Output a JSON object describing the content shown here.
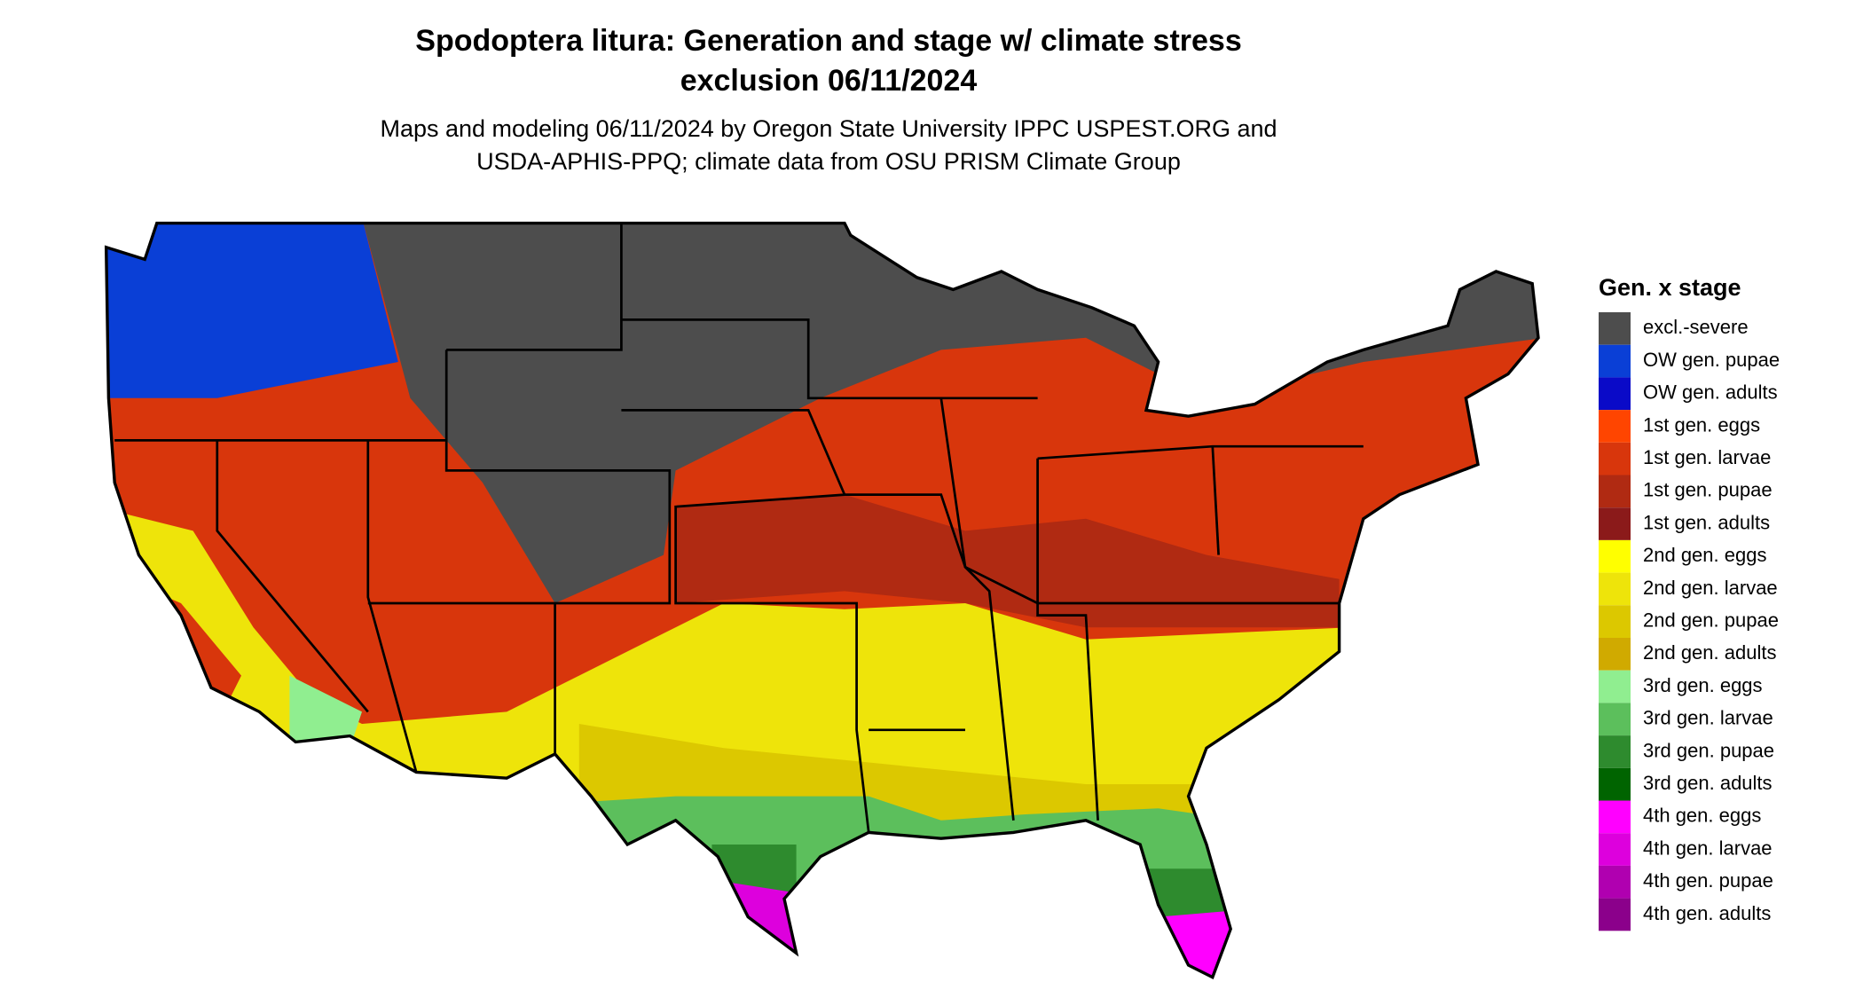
{
  "title_lines": [
    "Spodoptera litura: Generation and stage w/ climate stress",
    "exclusion 06/11/2024"
  ],
  "subtitle_lines": [
    "Maps and modeling 06/11/2024 by Oregon State University IPPC USPEST.ORG and",
    "USDA-APHIS-PPQ; climate data from OSU PRISM Climate Group"
  ],
  "legend": {
    "title": "Gen. x stage",
    "items": [
      {
        "label": "excl.-severe",
        "color": "#4d4d4d"
      },
      {
        "label": "OW gen. pupae",
        "color": "#0a3fd6"
      },
      {
        "label": "OW gen. adults",
        "color": "#0a0ac8"
      },
      {
        "label": "1st gen. eggs",
        "color": "#ff4500"
      },
      {
        "label": "1st gen. larvae",
        "color": "#d8360c"
      },
      {
        "label": "1st gen. pupae",
        "color": "#b02a12"
      },
      {
        "label": "1st gen. adults",
        "color": "#8b1a1a"
      },
      {
        "label": "2nd gen. eggs",
        "color": "#ffff00"
      },
      {
        "label": "2nd gen. larvae",
        "color": "#eee40a"
      },
      {
        "label": "2nd gen. pupae",
        "color": "#dcc800"
      },
      {
        "label": "2nd gen. adults",
        "color": "#d0aa00"
      },
      {
        "label": "3rd gen. eggs",
        "color": "#90ee90"
      },
      {
        "label": "3rd gen. larvae",
        "color": "#5cbf5c"
      },
      {
        "label": "3rd gen. pupae",
        "color": "#2e8b2e"
      },
      {
        "label": "3rd gen. adults",
        "color": "#006400"
      },
      {
        "label": "4th gen. eggs",
        "color": "#ff00ff"
      },
      {
        "label": "4th gen. larvae",
        "color": "#dd00dd"
      },
      {
        "label": "4th gen. pupae",
        "color": "#b000b0"
      },
      {
        "label": "4th gen. adults",
        "color": "#8b008b"
      }
    ]
  }
}
